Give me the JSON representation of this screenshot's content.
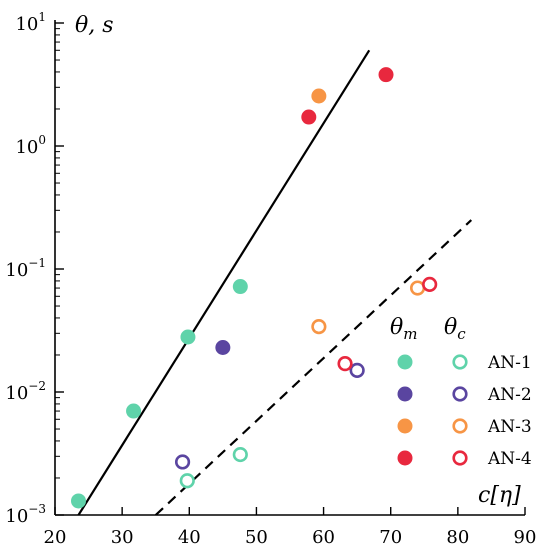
{
  "chart_data": {
    "type": "scatter",
    "xlabel": "c[η]",
    "ylabel": "θ, s",
    "xlim": [
      20,
      90
    ],
    "ylim": [
      0.001,
      10
    ],
    "yscale": "log",
    "x_ticks": [
      20,
      30,
      40,
      50,
      60,
      70,
      80,
      90
    ],
    "y_ticks": [
      {
        "value": 0.001,
        "mantissa": "10",
        "exponent": "−3"
      },
      {
        "value": 0.01,
        "mantissa": "10",
        "exponent": "−2"
      },
      {
        "value": 0.1,
        "mantissa": "10",
        "exponent": "−1"
      },
      {
        "value": 1,
        "mantissa": "10",
        "exponent": "0"
      },
      {
        "value": 10,
        "mantissa": "10",
        "exponent": "1"
      }
    ],
    "grid": false,
    "legend": {
      "placement": "bottom-right",
      "head_measured": "θ",
      "head_measured_sub": "m",
      "head_calculated": "θ",
      "head_calculated_sub": "c"
    },
    "series": [
      {
        "name": "AN-1",
        "color": "#5fd3aa",
        "measured": [
          [
            23.5,
            0.0013
          ],
          [
            31.7,
            0.007
          ],
          [
            39.8,
            0.028
          ],
          [
            47.6,
            0.072
          ]
        ],
        "calculated": [
          [
            39.7,
            0.0019
          ],
          [
            47.6,
            0.0031
          ]
        ]
      },
      {
        "name": "AN-2",
        "color": "#5a45a0",
        "measured": [
          [
            45.0,
            0.023
          ]
        ],
        "calculated": [
          [
            39.0,
            0.0027
          ],
          [
            65.0,
            0.015
          ]
        ]
      },
      {
        "name": "AN-3",
        "color": "#f79545",
        "measured": [
          [
            59.3,
            2.55
          ]
        ],
        "calculated": [
          [
            59.3,
            0.034
          ],
          [
            74.0,
            0.07
          ]
        ]
      },
      {
        "name": "AN-4",
        "color": "#e8283e",
        "measured": [
          [
            57.8,
            1.72
          ],
          [
            69.3,
            3.8
          ]
        ],
        "calculated": [
          [
            63.2,
            0.017
          ],
          [
            75.8,
            0.075
          ]
        ]
      }
    ],
    "fit_lines": [
      {
        "style": "solid",
        "points": [
          [
            23.5,
            0.001
          ],
          [
            66.8,
            6.0
          ]
        ]
      },
      {
        "style": "dashed",
        "points": [
          [
            35.0,
            0.001
          ],
          [
            82.0,
            0.25
          ]
        ]
      }
    ]
  }
}
